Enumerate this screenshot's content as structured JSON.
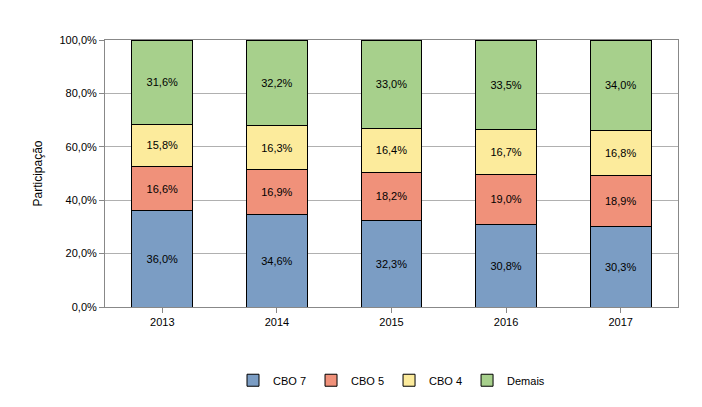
{
  "chart_data": {
    "type": "bar",
    "stacked": true,
    "data_labels": true,
    "grid": true,
    "legend": "bottom",
    "y_label": "Participação",
    "categories": [
      "2013",
      "2014",
      "2015",
      "2016",
      "2017"
    ],
    "ylim": [
      0,
      100
    ],
    "yticks": [
      {
        "value": 0,
        "label": "0,0%"
      },
      {
        "value": 20,
        "label": "20,0%"
      },
      {
        "value": 40,
        "label": "40,0%"
      },
      {
        "value": 60,
        "label": "60,0%"
      },
      {
        "value": 80,
        "label": "80,0%"
      },
      {
        "value": 100,
        "label": "100,0%"
      }
    ],
    "series": [
      {
        "name": "CBO 7",
        "color": "#7b9dc4",
        "values": [
          36.0,
          34.6,
          32.3,
          30.8,
          30.3
        ],
        "value_labels": [
          "36,0%",
          "34,6%",
          "32,3%",
          "30,8%",
          "30,3%"
        ]
      },
      {
        "name": "CBO 5",
        "color": "#f0917a",
        "values": [
          16.6,
          16.9,
          18.2,
          19.0,
          18.9
        ],
        "value_labels": [
          "16,6%",
          "16,9%",
          "18,2%",
          "19,0%",
          "18,9%"
        ]
      },
      {
        "name": "CBO 4",
        "color": "#fceb9c",
        "values": [
          15.8,
          16.3,
          16.4,
          16.7,
          16.8
        ],
        "value_labels": [
          "15,8%",
          "16,3%",
          "16,4%",
          "16,7%",
          "16,8%"
        ]
      },
      {
        "name": "Demais",
        "color": "#a7d08c",
        "values": [
          31.6,
          32.2,
          33.0,
          33.5,
          34.0
        ],
        "value_labels": [
          "31,6%",
          "32,2%",
          "33,0%",
          "33,5%",
          "34,0%"
        ]
      }
    ]
  }
}
